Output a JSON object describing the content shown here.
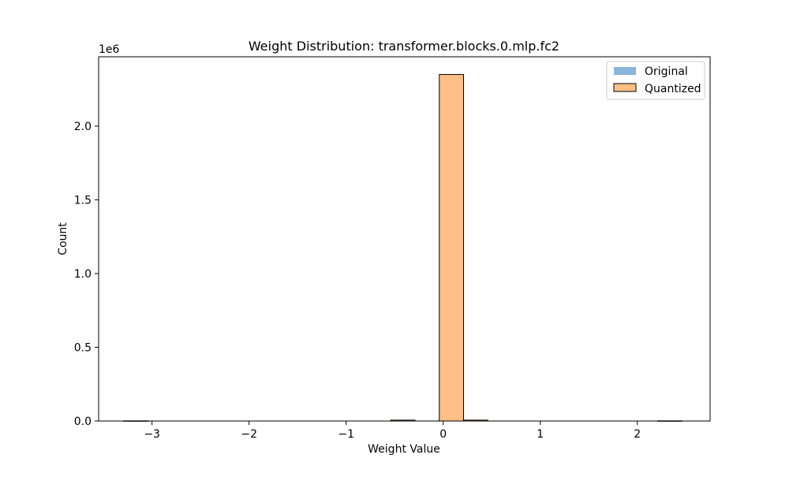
{
  "chart_data": {
    "type": "bar",
    "title": "Weight Distribution: transformer.blocks.0.mlp.fc2",
    "xlabel": "Weight Value",
    "ylabel": "Count",
    "y_offset_text": "1e6",
    "xlim": [
      -3.55,
      2.75
    ],
    "ylim": [
      0,
      2470000
    ],
    "x_ticks": [
      -3,
      -2,
      -1,
      0,
      1,
      2
    ],
    "x_tick_labels": [
      "−3",
      "−2",
      "−1",
      "0",
      "1",
      "2"
    ],
    "y_ticks": [
      0,
      500000,
      1000000,
      1500000,
      2000000
    ],
    "y_tick_labels": [
      "0.0",
      "0.5",
      "1.0",
      "1.5",
      "2.0"
    ],
    "legend_position": "top-right",
    "grid": false,
    "series": [
      {
        "name": "Original",
        "color": "#8ab6da",
        "edge": "none",
        "bins": [
          {
            "x0": -0.05,
            "x1": 0.0,
            "count": 9000
          },
          {
            "x0": 0.0,
            "x1": 0.05,
            "count": 16000
          },
          {
            "x0": 0.05,
            "x1": 0.1,
            "count": 6000
          }
        ]
      },
      {
        "name": "Quantized",
        "color": "#ffbf86",
        "edge": "#000000",
        "bins": [
          {
            "x0": -3.29,
            "x1": -3.04,
            "count": 1200
          },
          {
            "x0": -0.54,
            "x1": -0.29,
            "count": 6000
          },
          {
            "x0": -0.04,
            "x1": 0.21,
            "count": 2350000
          },
          {
            "x0": 0.21,
            "x1": 0.46,
            "count": 6000
          },
          {
            "x0": 2.21,
            "x1": 2.46,
            "count": 1200
          }
        ]
      }
    ]
  }
}
